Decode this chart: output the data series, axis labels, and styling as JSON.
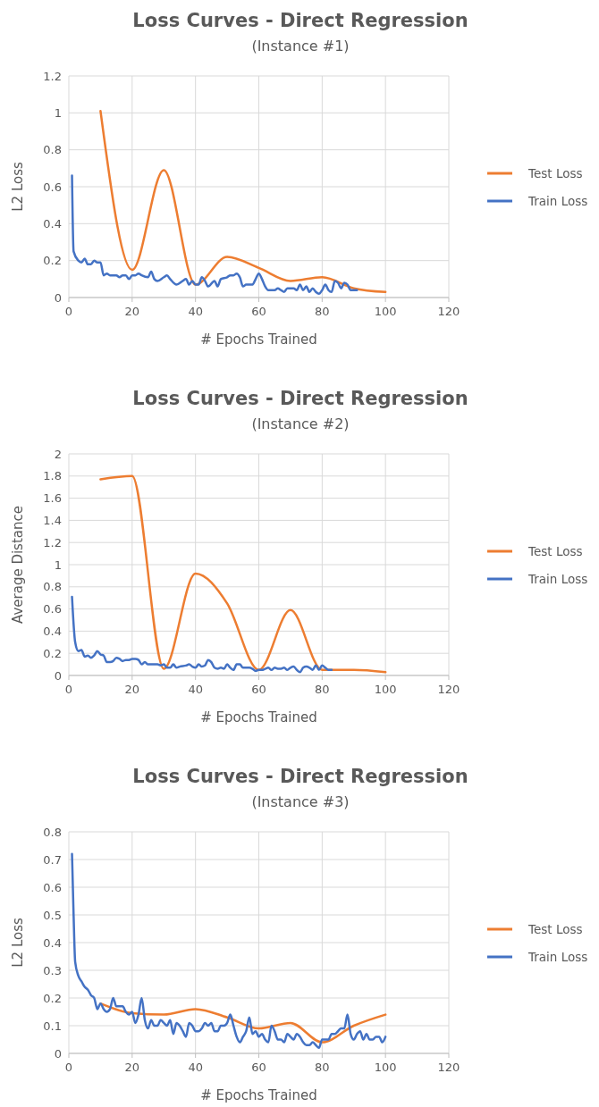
{
  "chart_data": [
    {
      "type": "line",
      "title": "Loss Curves - Direct Regression",
      "subtitle": "(Instance #1)",
      "xlabel": "# Epochs Trained",
      "ylabel": "L2 Loss",
      "xlim": [
        0,
        120
      ],
      "xticks": [
        0,
        20,
        40,
        60,
        80,
        100,
        120
      ],
      "ylim": [
        0,
        1.2
      ],
      "yticks": [
        0,
        0.2,
        0.4,
        0.6,
        0.8,
        1,
        1.2
      ],
      "grid": true,
      "legend": "right",
      "series": [
        {
          "name": "Test Loss",
          "color": "#ed7d31",
          "x": [
            10,
            20,
            30,
            40,
            50,
            60,
            70,
            80,
            90,
            100
          ],
          "values": [
            1.01,
            0.15,
            0.69,
            0.07,
            0.22,
            0.16,
            0.09,
            0.11,
            0.05,
            0.03
          ]
        },
        {
          "name": "Train Loss",
          "color": "#4472c4",
          "x": [
            1,
            1.5,
            3,
            4,
            5,
            6,
            7,
            8,
            9,
            10,
            11,
            12,
            13,
            15,
            16,
            17,
            18,
            19,
            20,
            21,
            22,
            23,
            25,
            26,
            27,
            28,
            30,
            31,
            32,
            34,
            36,
            37,
            38,
            39,
            40,
            41,
            42,
            43,
            44,
            46,
            47,
            48,
            50,
            51,
            52,
            53,
            54,
            55,
            56,
            57,
            58,
            59,
            60,
            61,
            62,
            63,
            64,
            65,
            66,
            67,
            68,
            69,
            70,
            71,
            72,
            73,
            74,
            75,
            76,
            77,
            78,
            79,
            80,
            81,
            82,
            83,
            84,
            85,
            86,
            87,
            88,
            89,
            90,
            91
          ],
          "values": [
            0.66,
            0.25,
            0.2,
            0.19,
            0.21,
            0.18,
            0.18,
            0.2,
            0.19,
            0.19,
            0.12,
            0.13,
            0.12,
            0.12,
            0.11,
            0.12,
            0.12,
            0.1,
            0.12,
            0.12,
            0.13,
            0.12,
            0.11,
            0.14,
            0.1,
            0.09,
            0.11,
            0.12,
            0.1,
            0.07,
            0.09,
            0.1,
            0.07,
            0.09,
            0.07,
            0.07,
            0.11,
            0.09,
            0.06,
            0.09,
            0.06,
            0.1,
            0.11,
            0.12,
            0.12,
            0.13,
            0.11,
            0.06,
            0.07,
            0.07,
            0.07,
            0.1,
            0.13,
            0.1,
            0.06,
            0.04,
            0.04,
            0.04,
            0.05,
            0.04,
            0.03,
            0.05,
            0.05,
            0.05,
            0.04,
            0.07,
            0.04,
            0.06,
            0.03,
            0.05,
            0.03,
            0.02,
            0.04,
            0.07,
            0.04,
            0.03,
            0.09,
            0.08,
            0.05,
            0.08,
            0.07,
            0.04,
            0.04,
            0.04
          ]
        }
      ]
    },
    {
      "type": "line",
      "title": "Loss Curves - Direct Regression",
      "subtitle": "(Instance #2)",
      "xlabel": "# Epochs Trained",
      "ylabel": "Average Distance",
      "xlim": [
        0,
        120
      ],
      "xticks": [
        0,
        20,
        40,
        60,
        80,
        100,
        120
      ],
      "ylim": [
        0,
        2
      ],
      "yticks": [
        0,
        0.2,
        0.4,
        0.6,
        0.8,
        1,
        1.2,
        1.4,
        1.6,
        1.8,
        2
      ],
      "grid": true,
      "legend": "right",
      "series": [
        {
          "name": "Test Loss",
          "color": "#ed7d31",
          "x": [
            10,
            20,
            30,
            40,
            50,
            60,
            70,
            80,
            90,
            100
          ],
          "values": [
            1.77,
            1.8,
            0.06,
            0.92,
            0.65,
            0.05,
            0.59,
            0.05,
            0.05,
            0.03
          ]
        },
        {
          "name": "Train Loss",
          "color": "#4472c4",
          "x": [
            1,
            2,
            3,
            4,
            5,
            6,
            7,
            8,
            9,
            10,
            11,
            12,
            13,
            14,
            15,
            16,
            17,
            18,
            19,
            20,
            21,
            22,
            23,
            24,
            25,
            27,
            28,
            29,
            30,
            31,
            32,
            33,
            34,
            35,
            37,
            38,
            39,
            40,
            41,
            42,
            43,
            44,
            45,
            46,
            47,
            48,
            49,
            50,
            51,
            52,
            53,
            54,
            55,
            56,
            57,
            58,
            59,
            60,
            61,
            62,
            63,
            64,
            65,
            66,
            67,
            68,
            69,
            70,
            71,
            72,
            73,
            74,
            75,
            76,
            77,
            78,
            79,
            80,
            81,
            82,
            83
          ],
          "values": [
            0.71,
            0.3,
            0.22,
            0.23,
            0.17,
            0.18,
            0.16,
            0.18,
            0.22,
            0.19,
            0.18,
            0.12,
            0.12,
            0.13,
            0.16,
            0.15,
            0.13,
            0.14,
            0.14,
            0.15,
            0.15,
            0.14,
            0.1,
            0.12,
            0.1,
            0.1,
            0.1,
            0.09,
            0.1,
            0.07,
            0.07,
            0.1,
            0.07,
            0.08,
            0.09,
            0.1,
            0.08,
            0.07,
            0.1,
            0.08,
            0.09,
            0.14,
            0.12,
            0.07,
            0.06,
            0.07,
            0.06,
            0.1,
            0.07,
            0.05,
            0.1,
            0.1,
            0.07,
            0.07,
            0.07,
            0.06,
            0.04,
            0.05,
            0.05,
            0.06,
            0.07,
            0.05,
            0.07,
            0.06,
            0.06,
            0.07,
            0.05,
            0.07,
            0.08,
            0.05,
            0.03,
            0.07,
            0.08,
            0.07,
            0.05,
            0.09,
            0.05,
            0.09,
            0.07,
            0.05,
            0.05
          ]
        }
      ]
    },
    {
      "type": "line",
      "title": "Loss Curves - Direct Regression",
      "subtitle": "(Instance #3)",
      "xlabel": "# Epochs Trained",
      "ylabel": "L2 Loss",
      "xlim": [
        0,
        120
      ],
      "xticks": [
        0,
        20,
        40,
        60,
        80,
        100,
        120
      ],
      "ylim": [
        0,
        0.8
      ],
      "yticks": [
        0,
        0.1,
        0.2,
        0.3,
        0.4,
        0.5,
        0.6,
        0.7,
        0.8
      ],
      "grid": true,
      "legend": "right",
      "series": [
        {
          "name": "Test Loss",
          "color": "#ed7d31",
          "x": [
            10,
            20,
            30,
            40,
            50,
            60,
            70,
            80,
            90,
            100
          ],
          "values": [
            0.18,
            0.145,
            0.14,
            0.16,
            0.13,
            0.09,
            0.11,
            0.04,
            0.1,
            0.14
          ]
        },
        {
          "name": "Train Loss",
          "color": "#4472c4",
          "x": [
            1,
            1.5,
            2,
            3,
            4,
            5,
            6,
            7,
            8,
            9,
            10,
            11,
            12,
            13,
            14,
            15,
            16,
            17,
            18,
            19,
            20,
            21,
            22,
            23,
            24,
            25,
            26,
            27,
            28,
            29,
            30,
            31,
            32,
            33,
            34,
            35,
            36,
            37,
            38,
            39,
            40,
            41,
            42,
            43,
            44,
            45,
            46,
            47,
            48,
            49,
            50,
            51,
            52,
            53,
            54,
            55,
            56,
            57,
            58,
            59,
            60,
            61,
            62,
            63,
            64,
            65,
            66,
            67,
            68,
            69,
            70,
            71,
            72,
            73,
            74,
            75,
            76,
            77,
            78,
            79,
            80,
            81,
            82,
            83,
            84,
            85,
            86,
            87,
            88,
            89,
            90,
            91,
            92,
            93,
            94,
            95,
            96,
            97,
            98,
            99,
            100
          ],
          "values": [
            0.72,
            0.5,
            0.33,
            0.28,
            0.26,
            0.24,
            0.23,
            0.21,
            0.2,
            0.16,
            0.18,
            0.16,
            0.15,
            0.16,
            0.2,
            0.17,
            0.17,
            0.17,
            0.15,
            0.14,
            0.15,
            0.11,
            0.14,
            0.2,
            0.12,
            0.09,
            0.12,
            0.1,
            0.1,
            0.12,
            0.11,
            0.1,
            0.12,
            0.07,
            0.11,
            0.1,
            0.08,
            0.06,
            0.11,
            0.1,
            0.08,
            0.08,
            0.09,
            0.11,
            0.1,
            0.11,
            0.08,
            0.08,
            0.1,
            0.1,
            0.11,
            0.14,
            0.1,
            0.06,
            0.04,
            0.06,
            0.08,
            0.13,
            0.07,
            0.08,
            0.06,
            0.07,
            0.05,
            0.04,
            0.1,
            0.08,
            0.05,
            0.05,
            0.04,
            0.07,
            0.06,
            0.05,
            0.07,
            0.06,
            0.04,
            0.03,
            0.03,
            0.04,
            0.03,
            0.02,
            0.05,
            0.05,
            0.05,
            0.07,
            0.07,
            0.08,
            0.09,
            0.09,
            0.14,
            0.07,
            0.05,
            0.07,
            0.08,
            0.05,
            0.07,
            0.05,
            0.05,
            0.06,
            0.06,
            0.04,
            0.06
          ]
        }
      ]
    }
  ]
}
